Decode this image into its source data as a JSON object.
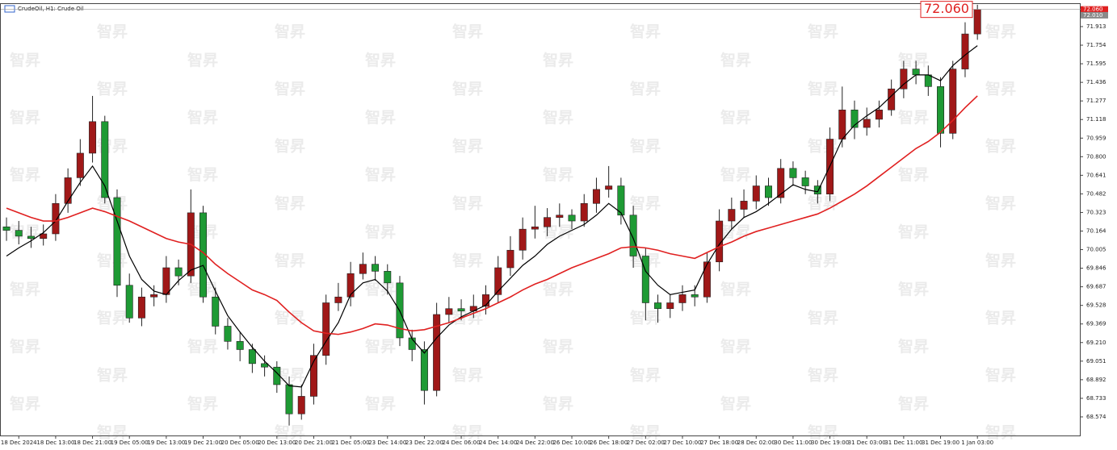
{
  "chart_data": {
    "type": "candlestick",
    "title": "CrudeOil, H1: Crude Oil",
    "watermark": "智昇",
    "up_color": "#a01818",
    "down_color": "#1e9a34",
    "open": [
      70.2,
      70.17,
      70.12,
      70.1,
      70.14,
      70.4,
      70.62,
      70.83,
      71.1,
      70.45,
      69.7,
      69.42,
      69.6,
      69.62,
      69.85,
      69.78,
      70.32,
      69.6,
      69.35,
      69.22,
      69.15,
      69.03,
      69.0,
      68.85,
      68.6,
      68.75,
      69.1,
      69.55,
      69.6,
      69.8,
      69.88,
      69.82,
      69.72,
      69.25,
      69.15,
      68.8,
      69.45,
      69.5,
      69.48,
      69.52,
      69.62,
      69.85,
      70.0,
      70.18,
      70.2,
      70.28,
      70.3,
      70.25,
      70.4,
      70.52,
      70.55,
      70.3,
      69.95,
      69.55,
      69.5,
      69.55,
      69.62,
      69.6,
      69.9,
      70.25,
      70.35,
      70.42,
      70.55,
      70.45,
      70.7,
      70.62,
      70.55,
      70.48,
      70.95,
      71.2,
      71.05,
      71.12,
      71.2,
      71.38,
      71.55,
      71.5,
      71.4,
      71.0,
      71.55,
      71.85
    ],
    "high": [
      70.28,
      70.25,
      70.2,
      70.22,
      70.48,
      70.7,
      70.95,
      71.32,
      71.15,
      70.52,
      69.8,
      69.68,
      69.7,
      69.95,
      69.92,
      70.52,
      70.38,
      69.68,
      69.42,
      69.3,
      69.2,
      69.1,
      69.05,
      68.92,
      68.85,
      69.2,
      69.62,
      69.72,
      69.9,
      69.98,
      69.95,
      69.88,
      69.78,
      69.32,
      69.22,
      69.55,
      69.6,
      69.58,
      69.62,
      69.7,
      69.95,
      70.12,
      70.28,
      70.38,
      70.36,
      70.4,
      70.35,
      70.48,
      70.62,
      70.72,
      70.62,
      70.38,
      70.02,
      69.62,
      69.62,
      69.7,
      69.7,
      69.98,
      70.35,
      70.45,
      70.52,
      70.64,
      70.62,
      70.78,
      70.76,
      70.68,
      70.6,
      71.05,
      71.4,
      71.28,
      71.22,
      71.28,
      71.46,
      71.62,
      71.62,
      71.58,
      71.48,
      71.62,
      71.95,
      72.1
    ],
    "low": [
      70.08,
      70.05,
      70.02,
      70.04,
      70.08,
      70.32,
      70.55,
      70.75,
      70.4,
      69.6,
      69.38,
      69.35,
      69.52,
      69.55,
      69.7,
      69.72,
      69.55,
      69.28,
      69.15,
      69.05,
      68.95,
      68.92,
      68.78,
      68.5,
      68.55,
      68.68,
      69.02,
      69.48,
      69.52,
      69.75,
      69.74,
      69.62,
      69.18,
      69.05,
      68.68,
      68.75,
      69.38,
      69.4,
      69.42,
      69.45,
      69.55,
      69.78,
      69.92,
      70.1,
      70.12,
      70.2,
      70.18,
      70.2,
      70.32,
      70.45,
      70.22,
      69.85,
      69.4,
      69.38,
      69.42,
      69.48,
      69.52,
      69.55,
      69.82,
      70.18,
      70.28,
      70.35,
      70.38,
      70.4,
      70.55,
      70.48,
      70.4,
      70.42,
      70.88,
      70.95,
      70.98,
      71.05,
      71.15,
      71.3,
      71.42,
      71.32,
      70.88,
      70.95,
      71.48,
      71.8
    ],
    "close": [
      70.17,
      70.12,
      70.1,
      70.14,
      70.4,
      70.62,
      70.83,
      71.1,
      70.45,
      69.7,
      69.42,
      69.6,
      69.62,
      69.85,
      69.78,
      70.32,
      69.6,
      69.35,
      69.22,
      69.15,
      69.03,
      69.0,
      68.85,
      68.6,
      68.75,
      69.1,
      69.55,
      69.6,
      69.8,
      69.88,
      69.82,
      69.72,
      69.25,
      69.15,
      68.8,
      69.45,
      69.5,
      69.48,
      69.52,
      69.62,
      69.85,
      70.0,
      70.18,
      70.2,
      70.28,
      70.3,
      70.25,
      70.4,
      70.52,
      70.55,
      70.3,
      69.95,
      69.55,
      69.5,
      69.55,
      69.62,
      69.6,
      69.9,
      70.25,
      70.35,
      70.42,
      70.55,
      70.45,
      70.7,
      70.62,
      70.55,
      70.48,
      70.95,
      71.2,
      71.05,
      71.12,
      71.2,
      71.38,
      71.55,
      71.5,
      71.4,
      71.0,
      71.55,
      71.85,
      72.06
    ],
    "lines": [
      {
        "color": "#000000",
        "values": [
          69.95,
          70.02,
          70.08,
          70.15,
          70.25,
          70.42,
          70.58,
          70.72,
          70.55,
          70.25,
          69.95,
          69.75,
          69.65,
          69.62,
          69.74,
          69.83,
          69.87,
          69.65,
          69.44,
          69.3,
          69.17,
          69.05,
          68.95,
          68.84,
          68.83,
          69.05,
          69.22,
          69.38,
          69.62,
          69.72,
          69.75,
          69.65,
          69.48,
          69.24,
          69.12,
          69.25,
          69.36,
          69.43,
          69.48,
          69.53,
          69.65,
          69.76,
          69.87,
          69.95,
          70.05,
          70.12,
          70.17,
          70.22,
          70.3,
          70.4,
          70.32,
          70.1,
          69.82,
          69.7,
          69.62,
          69.64,
          69.66,
          69.88,
          70.05,
          70.18,
          70.28,
          70.33,
          70.4,
          70.48,
          70.56,
          70.52,
          70.5,
          70.72,
          70.95,
          71.07,
          71.15,
          71.22,
          71.32,
          71.42,
          71.5,
          71.5,
          71.45,
          71.58,
          71.67,
          71.75
        ]
      },
      {
        "color": "#e02020",
        "values": [
          70.36,
          70.32,
          70.28,
          70.25,
          70.25,
          70.28,
          70.32,
          70.36,
          70.33,
          70.29,
          70.25,
          70.2,
          70.15,
          70.1,
          70.07,
          70.05,
          69.98,
          69.88,
          69.8,
          69.73,
          69.66,
          69.62,
          69.57,
          69.47,
          69.38,
          69.31,
          69.29,
          69.28,
          69.3,
          69.33,
          69.37,
          69.36,
          69.33,
          69.31,
          69.32,
          69.35,
          69.38,
          69.42,
          69.46,
          69.5,
          69.55,
          69.6,
          69.66,
          69.71,
          69.75,
          69.8,
          69.85,
          69.89,
          69.93,
          69.97,
          70.02,
          70.03,
          70.02,
          70.0,
          69.97,
          69.95,
          69.93,
          69.98,
          70.03,
          70.07,
          70.12,
          70.16,
          70.19,
          70.22,
          70.25,
          70.28,
          70.31,
          70.36,
          70.42,
          70.48,
          70.55,
          70.63,
          70.71,
          70.79,
          70.87,
          70.93,
          71.01,
          71.11,
          71.22,
          71.32
        ]
      }
    ],
    "xlim": [
      -0.2,
      87.4
    ],
    "xticks": [
      {
        "value": 1,
        "label": "18 Dec 2024"
      },
      {
        "value": 4,
        "label": "18 Dec 13:00"
      },
      {
        "value": 7,
        "label": "18 Dec 21:00"
      },
      {
        "value": 10,
        "label": "19 Dec 05:00"
      },
      {
        "value": 13,
        "label": "19 Dec 13:00"
      },
      {
        "value": 16,
        "label": "19 Dec 21:00"
      },
      {
        "value": 19,
        "label": "20 Dec 05:00"
      },
      {
        "value": 22,
        "label": "20 Dec 13:00"
      },
      {
        "value": 25,
        "label": "20 Dec 21:00"
      },
      {
        "value": 28,
        "label": "21 Dec 05:00"
      },
      {
        "value": 31,
        "label": "23 Dec 14:00"
      },
      {
        "value": 34,
        "label": "23 Dec 22:00"
      },
      {
        "value": 37,
        "label": "24 Dec 06:00"
      },
      {
        "value": 40,
        "label": "24 Dec 14:00"
      },
      {
        "value": 43,
        "label": "24 Dec 22:00"
      },
      {
        "value": 46,
        "label": "26 Dec 10:00"
      },
      {
        "value": 49,
        "label": "26 Dec 18:00"
      },
      {
        "value": 52,
        "label": "27 Dec 02:00"
      },
      {
        "value": 55,
        "label": "27 Dec 10:00"
      },
      {
        "value": 58,
        "label": "27 Dec 18:00"
      },
      {
        "value": 61,
        "label": "28 Dec 02:00"
      },
      {
        "value": 64,
        "label": "30 Dec 11:00"
      },
      {
        "value": 67,
        "label": "30 Dec 19:00"
      },
      {
        "value": 70,
        "label": "31 Dec 03:00"
      },
      {
        "value": 73,
        "label": "31 Dec 11:00"
      },
      {
        "value": 76,
        "label": "31 Dec 19:00"
      },
      {
        "value": 79,
        "label": "1 Jan 03:00"
      }
    ],
    "ylim": [
      68.415,
      72.106
    ],
    "yticks": [
      71.913,
      71.754,
      71.595,
      71.436,
      71.277,
      71.118,
      70.959,
      {
        "value": 70.8,
        "label": "70.800"
      },
      70.641,
      70.482,
      70.323,
      70.164,
      70.005,
      69.846,
      69.687,
      69.528,
      69.369,
      {
        "value": 69.21,
        "label": "69.210"
      },
      69.051,
      68.892,
      68.733,
      68.574
    ],
    "price_tags": [
      {
        "value": 72.06,
        "label": "72.060",
        "color": "#e02020"
      },
      {
        "value": 72.01,
        "label": "72.010",
        "color": "#8a8a8a"
      }
    ],
    "current_price": {
      "value": 72.06,
      "label": "72.060"
    }
  }
}
